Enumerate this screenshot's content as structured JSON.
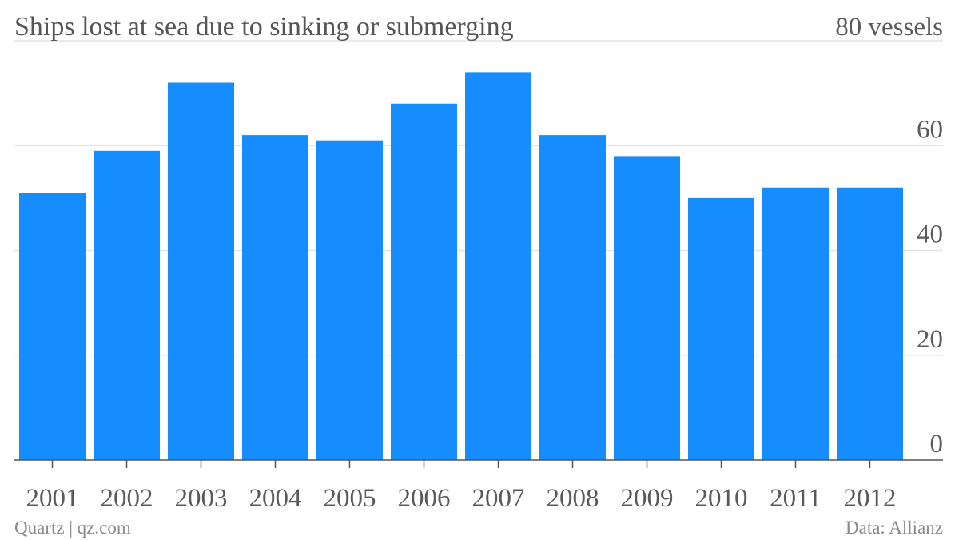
{
  "chart_data": {
    "type": "bar",
    "title": "Ships lost at sea due to sinking or submerging",
    "top_tick_label": "80 vessels",
    "categories": [
      "2001",
      "2002",
      "2003",
      "2004",
      "2005",
      "2006",
      "2007",
      "2008",
      "2009",
      "2010",
      "2011",
      "2012"
    ],
    "values": [
      51,
      59,
      72,
      62,
      61,
      68,
      74,
      62,
      58,
      50,
      52,
      52
    ],
    "ylim": [
      0,
      80
    ],
    "yticks": [
      {
        "value": 0,
        "label": "0"
      },
      {
        "value": 20,
        "label": "20"
      },
      {
        "value": 40,
        "label": "40"
      },
      {
        "value": 60,
        "label": "60"
      },
      {
        "value": 80,
        "label": "80 vessels"
      }
    ],
    "y_axis_side": "right",
    "grid": true,
    "bar_color": "#168dff",
    "source_left": "Quartz | qz.com",
    "source_right": "Data: Allianz"
  }
}
